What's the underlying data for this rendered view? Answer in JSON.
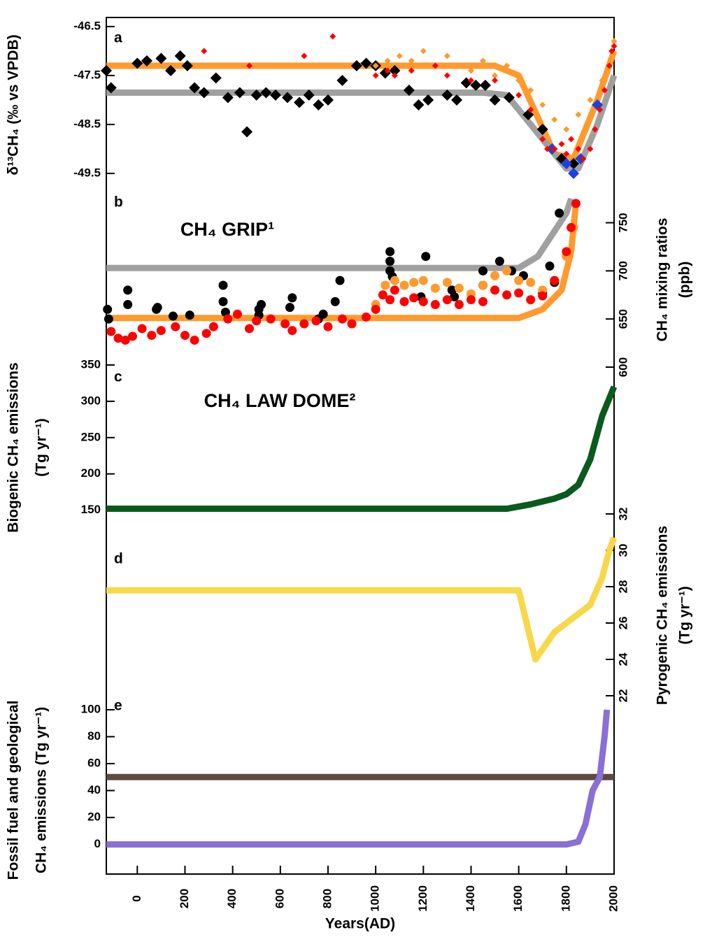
{
  "chart_data": [
    {
      "type": "scatter",
      "panel": "a",
      "ylabel": [
        "δ¹³CH₄ (‰ vs VPDB)"
      ],
      "axis_side": "left",
      "xlim": [
        -130,
        2000
      ],
      "ylim": [
        -49.9,
        -46.4
      ],
      "yticks": [
        -46.5,
        -47.5,
        -48.5,
        -49.5
      ],
      "series": [
        {
          "type": "line",
          "color": "#ff9a2e",
          "x": [
            -130,
            1500,
            1600,
            1750,
            1830,
            1930,
            2000
          ],
          "values": [
            -47.3,
            -47.3,
            -47.5,
            -49.1,
            -49.2,
            -48.0,
            -47.0
          ]
        },
        {
          "type": "line",
          "color": "#a0a0a0",
          "x": [
            -130,
            1450,
            1550,
            1800,
            1850,
            1930,
            2000
          ],
          "values": [
            -47.85,
            -47.85,
            -47.9,
            -49.4,
            -49.4,
            -48.5,
            -47.5
          ]
        },
        {
          "type": "diamond",
          "color": "#000000",
          "x": [
            -130,
            -110,
            0,
            40,
            100,
            140,
            180,
            210,
            240,
            280,
            330,
            380,
            430,
            460,
            500,
            540,
            580,
            630,
            680,
            720,
            760,
            800,
            860,
            920,
            960,
            1000,
            1040,
            1080,
            1140,
            1180,
            1220,
            1300,
            1340,
            1380,
            1420,
            1460,
            1500,
            1560,
            1640,
            1700,
            1740,
            1780,
            1830
          ],
          "values": [
            -47.4,
            -47.75,
            -47.25,
            -47.2,
            -47.15,
            -47.4,
            -47.1,
            -47.3,
            -47.75,
            -47.85,
            -47.55,
            -47.95,
            -47.85,
            -48.65,
            -47.9,
            -47.85,
            -47.9,
            -47.95,
            -48.05,
            -47.9,
            -48.1,
            -48.0,
            -47.6,
            -47.3,
            -47.25,
            -47.3,
            -47.45,
            -47.4,
            -47.8,
            -48.1,
            -48.0,
            -47.9,
            -48.0,
            -47.65,
            -47.7,
            -47.7,
            -48.0,
            -47.95,
            -48.3,
            -48.6,
            -49.0,
            -49.2,
            -49.3
          ]
        },
        {
          "type": "diamond",
          "color": "#1f3fe0",
          "x": [
            1740,
            1800,
            1830,
            1860,
            1930
          ],
          "values": [
            -49.0,
            -49.3,
            -49.5,
            -49.2,
            -48.1
          ]
        },
        {
          "type": "dot",
          "color": "#ff9a2e",
          "x": [
            1000,
            1050,
            1100,
            1150,
            1200,
            1250,
            1300,
            1350,
            1400,
            1450,
            1500,
            1550,
            1600,
            1650,
            1700,
            1750,
            1800,
            1850,
            1900,
            1950,
            2000
          ],
          "values": [
            -47.3,
            -47.2,
            -47.1,
            -47.2,
            -47.0,
            -47.3,
            -47.1,
            -47.3,
            -47.4,
            -47.2,
            -47.5,
            -47.3,
            -47.6,
            -47.8,
            -48.1,
            -48.4,
            -48.6,
            -48.3,
            -48.0,
            -47.6,
            -46.8
          ]
        },
        {
          "type": "dot",
          "color": "#ff0000",
          "x": [
            280,
            470,
            700,
            820,
            1000,
            1050,
            1080,
            1150,
            1250,
            1300,
            1400,
            1500,
            1600,
            1650,
            1700,
            1720,
            1750,
            1780,
            1800,
            1820,
            1850,
            1870,
            1900,
            1920,
            1940,
            1960,
            1980,
            1990,
            2000
          ],
          "values": [
            -47.0,
            -47.3,
            -47.1,
            -46.7,
            -47.5,
            -47.4,
            -47.5,
            -47.4,
            -47.3,
            -47.5,
            -47.6,
            -47.6,
            -47.9,
            -48.2,
            -48.8,
            -49.0,
            -49.0,
            -48.9,
            -49.1,
            -48.8,
            -49.0,
            -49.2,
            -49.0,
            -48.6,
            -48.2,
            -47.8,
            -47.3,
            -47.0,
            -46.9
          ]
        }
      ]
    },
    {
      "type": "scatter",
      "panel": "b",
      "ylabel": [
        "CH₄ mixing ratios",
        "(ppb)"
      ],
      "axis_side": "right",
      "annotations": [
        {
          "text": "CH₄ GRIP¹",
          "color": "#000000"
        },
        {
          "text": "CH₄ LAW DOME²",
          "color": "#ff0000"
        }
      ],
      "xlim": [
        -130,
        2000
      ],
      "ylim": [
        600,
        778
      ],
      "yticks": [
        600,
        650,
        700,
        750
      ],
      "series": [
        {
          "type": "line",
          "color": "#a0a0a0",
          "x": [
            -130,
            1600,
            1680,
            1800,
            1820
          ],
          "values": [
            703,
            703,
            715,
            760,
            775
          ]
        },
        {
          "type": "line",
          "color": "#ff9a2e",
          "x": [
            -130,
            1600,
            1700,
            1780,
            1820,
            1840
          ],
          "values": [
            651,
            651,
            660,
            680,
            720,
            770
          ]
        },
        {
          "type": "circle",
          "color": "#000000",
          "x": [
            -125,
            -120,
            -40,
            -40,
            80,
            85,
            150,
            220,
            360,
            360,
            370,
            510,
            510,
            520,
            640,
            650,
            760,
            780,
            830,
            850,
            1060,
            1060,
            1060,
            1070,
            1190,
            1210,
            1320,
            1330,
            1450,
            1450,
            1520,
            1570,
            1620,
            1700,
            1730,
            1750,
            1770
          ],
          "values": [
            660,
            650,
            680,
            665,
            660,
            662,
            653,
            654,
            668,
            685,
            657,
            660,
            654,
            665,
            662,
            672,
            650,
            655,
            668,
            690,
            700,
            710,
            720,
            694,
            673,
            715,
            680,
            673,
            700,
            685,
            710,
            700,
            695,
            677,
            705,
            688,
            760
          ]
        },
        {
          "type": "circle",
          "color": "#ff9a2e",
          "x": [
            1000,
            1040,
            1080,
            1120,
            1160,
            1200,
            1250,
            1300,
            1350,
            1400,
            1450,
            1500,
            1550,
            1600,
            1650,
            1700,
            1750,
            1800,
            1830
          ],
          "values": [
            665,
            685,
            690,
            685,
            688,
            690,
            682,
            688,
            682,
            676,
            685,
            695,
            700,
            690,
            688,
            680,
            690,
            715,
            745
          ]
        },
        {
          "type": "circle",
          "color": "#ff0000",
          "x": [
            -110,
            -80,
            -50,
            -20,
            20,
            60,
            100,
            160,
            200,
            240,
            290,
            320,
            380,
            420,
            470,
            500,
            560,
            620,
            650,
            700,
            750,
            800,
            860,
            900,
            960,
            1000,
            1030,
            1060,
            1080,
            1120,
            1160,
            1200,
            1250,
            1300,
            1350,
            1400,
            1450,
            1500,
            1550,
            1600,
            1650,
            1700,
            1750,
            1800,
            1820,
            1840
          ],
          "values": [
            637,
            630,
            628,
            632,
            640,
            633,
            638,
            642,
            633,
            628,
            635,
            642,
            650,
            655,
            640,
            648,
            650,
            645,
            638,
            645,
            648,
            642,
            650,
            645,
            652,
            660,
            675,
            670,
            680,
            668,
            672,
            668,
            665,
            670,
            665,
            670,
            668,
            680,
            675,
            677,
            670,
            674,
            690,
            720,
            745,
            770
          ]
        }
      ]
    },
    {
      "type": "scatter",
      "panel": "c",
      "ylabel": [
        "Biogenic  CH₄ emissions",
        "(Tg yr⁻¹)"
      ],
      "axis_side": "left",
      "xlim": [
        -130,
        2000
      ],
      "ylim": [
        140,
        350
      ],
      "yticks": [
        150,
        200,
        250,
        300,
        350
      ],
      "series": [
        {
          "type": "line",
          "color": "#0a5a1e",
          "x": [
            -130,
            1550,
            1650,
            1750,
            1800,
            1850,
            1900,
            1950,
            2000
          ],
          "values": [
            152,
            152,
            158,
            166,
            172,
            185,
            220,
            280,
            320
          ]
        }
      ]
    },
    {
      "type": "scatter",
      "panel": "d",
      "ylabel": [
        "Pyrogenic CH₄ emissions",
        "(Tg yr⁻¹)"
      ],
      "axis_side": "right",
      "xlim": [
        -130,
        2000
      ],
      "ylim": [
        22,
        32
      ],
      "yticks": [
        22,
        24,
        26,
        28,
        30,
        32
      ],
      "series": [
        {
          "type": "line",
          "color": "#f7d84a",
          "x": [
            -130,
            1600,
            1670,
            1750,
            1850,
            1900,
            1950,
            1980,
            2000
          ],
          "values": [
            27.8,
            27.8,
            24,
            25.5,
            26.5,
            27,
            28.5,
            30,
            30.7
          ]
        }
      ]
    },
    {
      "type": "scatter",
      "panel": "e",
      "ylabel": [
        "Fossil fuel and geological",
        "CH₄ emissions (Tg yr⁻¹)"
      ],
      "axis_side": "left",
      "xlabel": "Years(AD)",
      "xlim": [
        -130,
        2000
      ],
      "ylim": [
        -22,
        100
      ],
      "xticks": [
        0,
        200,
        400,
        600,
        800,
        1000,
        1200,
        1400,
        1600,
        1800,
        2000
      ],
      "yticks": [
        0,
        20,
        40,
        60,
        80,
        100
      ],
      "series": [
        {
          "type": "line",
          "color": "#5e4a40",
          "x": [
            -130,
            2000
          ],
          "values": [
            50,
            50
          ]
        },
        {
          "type": "line",
          "color": "#8a6fd6",
          "x": [
            -130,
            1800,
            1850,
            1880,
            1910,
            1940,
            1960,
            1970
          ],
          "values": [
            0,
            0,
            2,
            15,
            40,
            50,
            80,
            100
          ]
        }
      ]
    }
  ]
}
